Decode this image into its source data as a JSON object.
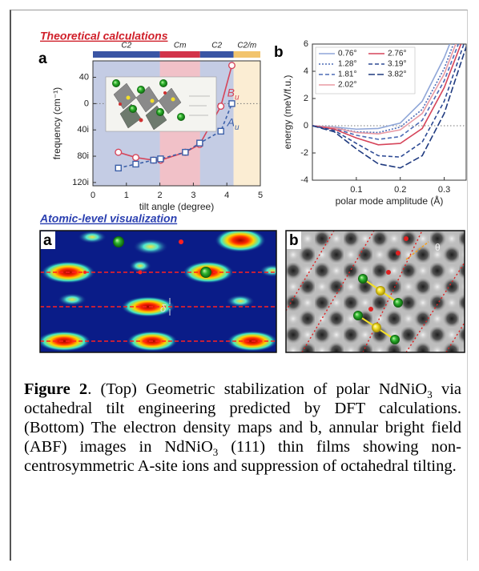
{
  "sections": [
    "Theoretical calculations",
    "Atomic-level visualization"
  ],
  "chart_data": [
    {
      "type": "line",
      "panel": "a",
      "xlabel": "tilt angle (degree)",
      "ylabel": "frequency (cm⁻¹)",
      "xlim": [
        0,
        5
      ],
      "ylim": [
        -125,
        65
      ],
      "xticks": [
        0,
        1,
        2,
        3,
        4,
        5
      ],
      "yticks": [
        40,
        0,
        {
          "value": -40,
          "label": "40i"
        },
        {
          "value": -80,
          "label": "80i"
        },
        {
          "value": -120,
          "label": "120i"
        }
      ],
      "zero_line": true,
      "phases": [
        {
          "label": "C2",
          "start": 0,
          "end": 2,
          "color": "#3a55a4"
        },
        {
          "label": "Cm",
          "start": 2,
          "end": 3.2,
          "color": "#d2334a"
        },
        {
          "label": "C2",
          "start": 3.2,
          "end": 4.2,
          "color": "#3a55a4"
        },
        {
          "label": "C2/m",
          "start": 4.2,
          "end": 5,
          "color": "#f2c46d"
        }
      ],
      "x": [
        0.76,
        1.28,
        1.81,
        2.02,
        2.76,
        3.19,
        3.82,
        4.15
      ],
      "series": [
        {
          "name": "Bu",
          "color": "#d6455a",
          "marker": "circle",
          "values": [
            -74,
            -82,
            -86,
            -86,
            -74,
            -62,
            -4,
            58
          ]
        },
        {
          "name": "Au",
          "color": "#3b5fa8",
          "marker": "square",
          "dash": "4,3",
          "values": [
            -98,
            -92,
            -86,
            -84,
            -74,
            -60,
            -42,
            0
          ]
        }
      ]
    },
    {
      "type": "line",
      "panel": "b",
      "xlabel": "polar mode amplitude (Å)",
      "ylabel": "energy (meV/f.u.)",
      "xlim": [
        0,
        0.35
      ],
      "ylim": [
        -4,
        6
      ],
      "xticks": [
        0.1,
        0.2,
        0.3
      ],
      "yticks": [
        -4,
        -2,
        0,
        2,
        4,
        6
      ],
      "zero_line": true,
      "legend": "upper left",
      "x": [
        0,
        0.05,
        0.1,
        0.15,
        0.2,
        0.25,
        0.3,
        0.35
      ],
      "series": [
        {
          "name": "0.76°",
          "color": "#8fa6d8",
          "values": [
            0,
            -0.1,
            -0.25,
            -0.2,
            0.2,
            1.8,
            5.0,
            9.0
          ]
        },
        {
          "name": "1.28°",
          "color": "#4d6bb5",
          "dash": "2,2",
          "values": [
            0,
            -0.15,
            -0.45,
            -0.5,
            -0.1,
            1.2,
            4.2,
            8.5
          ]
        },
        {
          "name": "1.81°",
          "color": "#4d6bb5",
          "dash": "5,3",
          "values": [
            0,
            -0.2,
            -0.7,
            -1.0,
            -0.8,
            0.4,
            3.3,
            7.5
          ]
        },
        {
          "name": "2.02°",
          "color": "#e89aa4",
          "values": [
            0,
            -0.15,
            -0.5,
            -0.6,
            -0.3,
            0.9,
            3.8,
            8.0
          ]
        },
        {
          "name": "2.76°",
          "color": "#d6455a",
          "values": [
            0,
            -0.25,
            -0.9,
            -1.4,
            -1.3,
            -0.2,
            2.8,
            7.0
          ]
        },
        {
          "name": "3.19°",
          "color": "#2d4a94",
          "dash": "5,3",
          "values": [
            0,
            -0.35,
            -1.3,
            -2.2,
            -2.3,
            -1.2,
            1.8,
            6.5
          ]
        },
        {
          "name": "3.82°",
          "color": "#1f3a7f",
          "dash": "8,3",
          "values": [
            0,
            -0.45,
            -1.7,
            -2.8,
            -3.1,
            -2.2,
            0.9,
            5.8
          ]
        }
      ]
    }
  ],
  "images": [
    {
      "panel": "a",
      "annotation": "δ"
    },
    {
      "panel": "b",
      "annotation": "θ"
    }
  ],
  "caption": [
    "Figure 2",
    ". (Top) Geometric stabilization of polar NdNiO",
    "3",
    " via octahedral tilt engineering predicted by DFT calculations. (Bottom)  The electron density maps and b, annular bright field (ABF) images in NdNiO",
    "3",
    " (111) thin films showing non-centrosymmetric A-site ions and suppression of octahedral tilting."
  ]
}
